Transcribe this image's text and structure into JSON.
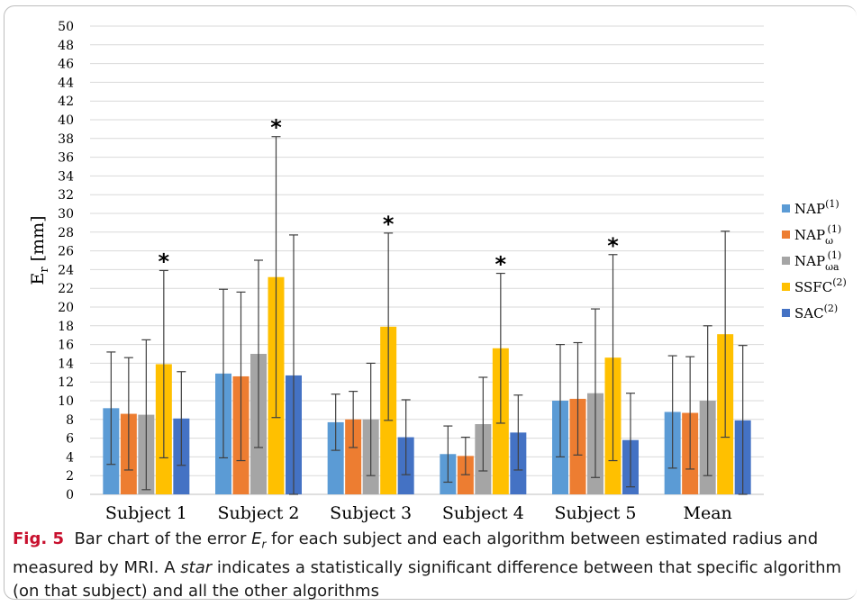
{
  "chart_data": {
    "type": "bar",
    "categories": [
      "Subject 1",
      "Subject 2",
      "Subject 3",
      "Subject 4",
      "Subject 5",
      "Mean"
    ],
    "ylabel_main": "E",
    "ylabel_sub": "r",
    "ylabel_unit": "[mm]",
    "ylim": [
      0,
      50
    ],
    "ytick_step": 2,
    "yticks": [
      "0",
      "2",
      "4",
      "6",
      "8",
      "10",
      "12",
      "14",
      "16",
      "18",
      "20",
      "22",
      "24",
      "26",
      "28",
      "30",
      "32",
      "34",
      "36",
      "38",
      "40",
      "42",
      "44",
      "46",
      "48",
      "50"
    ],
    "grid": true,
    "legend_position": "right",
    "significance_marker": "*",
    "series": [
      {
        "name": "NAP",
        "sup": "(1)",
        "sub": "",
        "color": "#5b9bd5",
        "values": [
          9.2,
          12.9,
          7.7,
          4.3,
          10.0,
          8.8
        ],
        "errors": [
          6.0,
          9.0,
          3.0,
          3.0,
          6.0,
          6.0
        ]
      },
      {
        "name": "NAP",
        "sup": "(1)",
        "sub": "ω",
        "color": "#ed7d31",
        "values": [
          8.6,
          12.6,
          8.0,
          4.1,
          10.2,
          8.7
        ],
        "errors": [
          6.0,
          9.0,
          3.0,
          2.0,
          6.0,
          6.0
        ]
      },
      {
        "name": "NAP",
        "sup": "(1)",
        "sub": "ωa",
        "color": "#a5a5a5",
        "values": [
          8.5,
          15.0,
          8.0,
          7.5,
          10.8,
          10.0
        ],
        "errors": [
          8.0,
          10.0,
          6.0,
          5.0,
          9.0,
          8.0
        ]
      },
      {
        "name": "SSFC",
        "sup": "(2)",
        "sub": "",
        "color": "#ffc000",
        "values": [
          13.9,
          23.2,
          17.9,
          15.6,
          14.6,
          17.1
        ],
        "errors": [
          10.0,
          15.0,
          10.0,
          8.0,
          11.0,
          11.0
        ]
      },
      {
        "name": "SAC",
        "sup": "(2)",
        "sub": "",
        "color": "#4472c4",
        "values": [
          8.1,
          12.7,
          6.1,
          6.6,
          5.8,
          7.9
        ],
        "errors": [
          5.0,
          15.0,
          4.0,
          4.0,
          5.0,
          8.0
        ]
      }
    ],
    "significant": [
      [
        0,
        3
      ],
      [
        1,
        3
      ],
      [
        2,
        3
      ],
      [
        3,
        3
      ],
      [
        4,
        3
      ]
    ]
  },
  "caption": {
    "label": "Fig. 5",
    "text_before_var": "Bar chart of the error ",
    "var": "E",
    "var_sub": "r",
    "text_after_var": " for each subject and each algorithm between estimated radius and measured by MRI. A ",
    "emph": "star",
    "text_end": " indicates a statistically significant difference between that specific algorithm (on that subject) and all the other algorithms"
  }
}
